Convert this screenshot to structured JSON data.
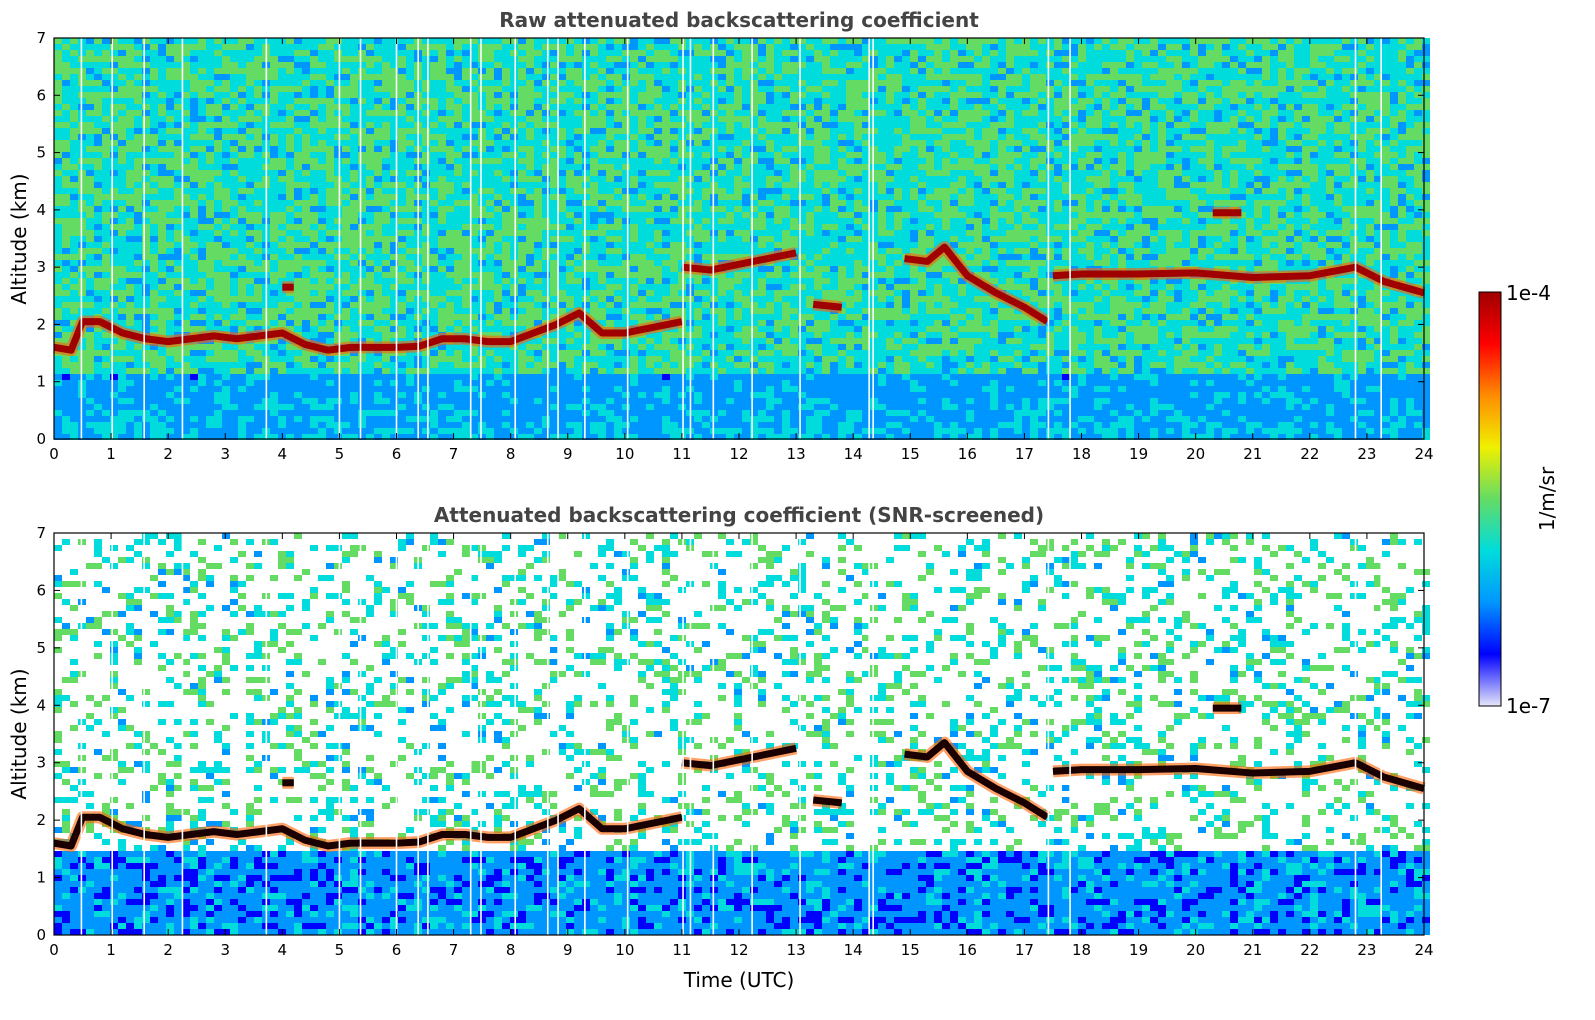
{
  "chart_data": [
    {
      "type": "heatmap",
      "title": "Raw attenuated backscattering coefficient",
      "xlabel": "",
      "ylabel": "Altitude (km)",
      "xlim": [
        0,
        24
      ],
      "ylim": [
        0,
        7
      ],
      "x_ticks": [
        "0",
        "1",
        "2",
        "3",
        "4",
        "5",
        "6",
        "7",
        "8",
        "9",
        "10",
        "11",
        "12",
        "13",
        "14",
        "15",
        "16",
        "17",
        "18",
        "19",
        "20",
        "21",
        "22",
        "23",
        "24"
      ],
      "y_ticks": [
        "0",
        "1",
        "2",
        "3",
        "4",
        "5",
        "6",
        "7"
      ],
      "cloud_layers": [
        {
          "x": [
            0.0,
            0.3,
            0.5,
            0.8,
            1.2,
            1.6,
            2.0,
            2.4,
            2.8,
            3.2,
            3.6,
            4.0,
            4.4,
            4.8,
            5.2,
            5.6,
            6.0,
            6.4,
            6.8,
            7.2,
            7.6,
            8.0,
            8.4,
            8.8,
            9.2,
            9.6,
            10.0,
            10.5,
            11.0
          ],
          "y": [
            1.6,
            1.55,
            2.05,
            2.05,
            1.85,
            1.75,
            1.7,
            1.75,
            1.8,
            1.75,
            1.8,
            1.85,
            1.65,
            1.55,
            1.6,
            1.6,
            1.6,
            1.62,
            1.75,
            1.75,
            1.7,
            1.7,
            1.85,
            2.0,
            2.2,
            1.85,
            1.85,
            1.95,
            2.05
          ]
        },
        {
          "x": [
            4.0,
            4.2
          ],
          "y": [
            2.65,
            2.65
          ]
        },
        {
          "x": [
            11.0,
            11.5,
            12.0,
            12.5,
            13.0
          ],
          "y": [
            3.0,
            2.95,
            3.05,
            3.15,
            3.25
          ]
        },
        {
          "x": [
            13.3,
            13.8
          ],
          "y": [
            2.35,
            2.3
          ]
        },
        {
          "x": [
            14.9,
            15.3,
            15.6,
            16.0,
            16.5,
            17.0,
            17.4
          ],
          "y": [
            3.15,
            3.1,
            3.35,
            2.85,
            2.55,
            2.3,
            2.05
          ]
        },
        {
          "x": [
            17.5,
            18.0,
            19.0,
            20.0,
            21.0,
            22.0,
            22.8,
            23.3,
            24.0
          ],
          "y": [
            2.85,
            2.88,
            2.88,
            2.9,
            2.82,
            2.85,
            3.0,
            2.75,
            2.55
          ]
        },
        {
          "x": [
            20.3,
            20.8
          ],
          "y": [
            3.95,
            3.95
          ]
        }
      ],
      "gap_times": [
        0.48,
        1.02,
        1.58,
        2.25,
        3.72,
        5.0,
        5.37,
        6.0,
        6.38,
        6.55,
        7.3,
        7.48,
        8.08,
        8.65,
        8.83,
        9.3,
        10.05,
        11.02,
        11.15,
        11.55,
        12.23,
        13.07,
        14.28,
        14.35,
        17.42,
        17.8,
        22.8,
        23.25
      ],
      "background": "noisy"
    },
    {
      "type": "heatmap",
      "title": "Attenuated backscattering coefficient (SNR-screened)",
      "xlabel": "Time (UTC)",
      "ylabel": "Altitude (km)",
      "xlim": [
        0,
        24
      ],
      "ylim": [
        0,
        7
      ],
      "x_ticks": [
        "0",
        "1",
        "2",
        "3",
        "4",
        "5",
        "6",
        "7",
        "8",
        "9",
        "10",
        "11",
        "12",
        "13",
        "14",
        "15",
        "16",
        "17",
        "18",
        "19",
        "20",
        "21",
        "22",
        "23",
        "24"
      ],
      "y_ticks": [
        "0",
        "1",
        "2",
        "3",
        "4",
        "5",
        "6",
        "7"
      ],
      "cloud_layers": [
        {
          "x": [
            0.0,
            0.3,
            0.5,
            0.8,
            1.2,
            1.6,
            2.0,
            2.4,
            2.8,
            3.2,
            3.6,
            4.0,
            4.4,
            4.8,
            5.2,
            5.6,
            6.0,
            6.4,
            6.8,
            7.2,
            7.6,
            8.0,
            8.4,
            8.8,
            9.2,
            9.6,
            10.0,
            10.5,
            11.0
          ],
          "y": [
            1.6,
            1.55,
            2.05,
            2.05,
            1.85,
            1.75,
            1.7,
            1.75,
            1.8,
            1.75,
            1.8,
            1.85,
            1.65,
            1.55,
            1.6,
            1.6,
            1.6,
            1.62,
            1.75,
            1.75,
            1.7,
            1.7,
            1.85,
            2.0,
            2.2,
            1.85,
            1.85,
            1.95,
            2.05
          ]
        },
        {
          "x": [
            4.0,
            4.2
          ],
          "y": [
            2.65,
            2.65
          ]
        },
        {
          "x": [
            11.0,
            11.5,
            12.0,
            12.5,
            13.0
          ],
          "y": [
            3.0,
            2.95,
            3.05,
            3.15,
            3.25
          ]
        },
        {
          "x": [
            13.3,
            13.8
          ],
          "y": [
            2.35,
            2.3
          ]
        },
        {
          "x": [
            14.9,
            15.3,
            15.6,
            16.0,
            16.5,
            17.0,
            17.4
          ],
          "y": [
            3.15,
            3.1,
            3.35,
            2.85,
            2.55,
            2.3,
            2.05
          ]
        },
        {
          "x": [
            17.5,
            18.0,
            19.0,
            20.0,
            21.0,
            22.0,
            22.8,
            23.3,
            24.0
          ],
          "y": [
            2.85,
            2.88,
            2.88,
            2.9,
            2.82,
            2.85,
            3.0,
            2.75,
            2.55
          ]
        },
        {
          "x": [
            20.3,
            20.8
          ],
          "y": [
            3.95,
            3.95
          ]
        }
      ],
      "gap_times": [
        0.48,
        1.02,
        1.58,
        2.25,
        3.72,
        5.0,
        5.37,
        6.0,
        6.38,
        6.55,
        7.3,
        7.48,
        8.08,
        8.65,
        8.83,
        9.3,
        10.05,
        11.02,
        11.15,
        11.55,
        12.23,
        13.07,
        14.28,
        14.35,
        17.42,
        17.8,
        22.8,
        23.25
      ],
      "background": "screened"
    }
  ],
  "colorbar": {
    "max_label": "1e-4",
    "min_label": "1e-7",
    "unit_label": "1/m/sr",
    "scale": "log",
    "range": [
      1e-07,
      0.0001
    ],
    "colormap": [
      "#e6e6fa",
      "#0000ff",
      "#0096ff",
      "#00dcdc",
      "#64dc64",
      "#f0f000",
      "#ff8c00",
      "#ff0000",
      "#a00000"
    ]
  }
}
